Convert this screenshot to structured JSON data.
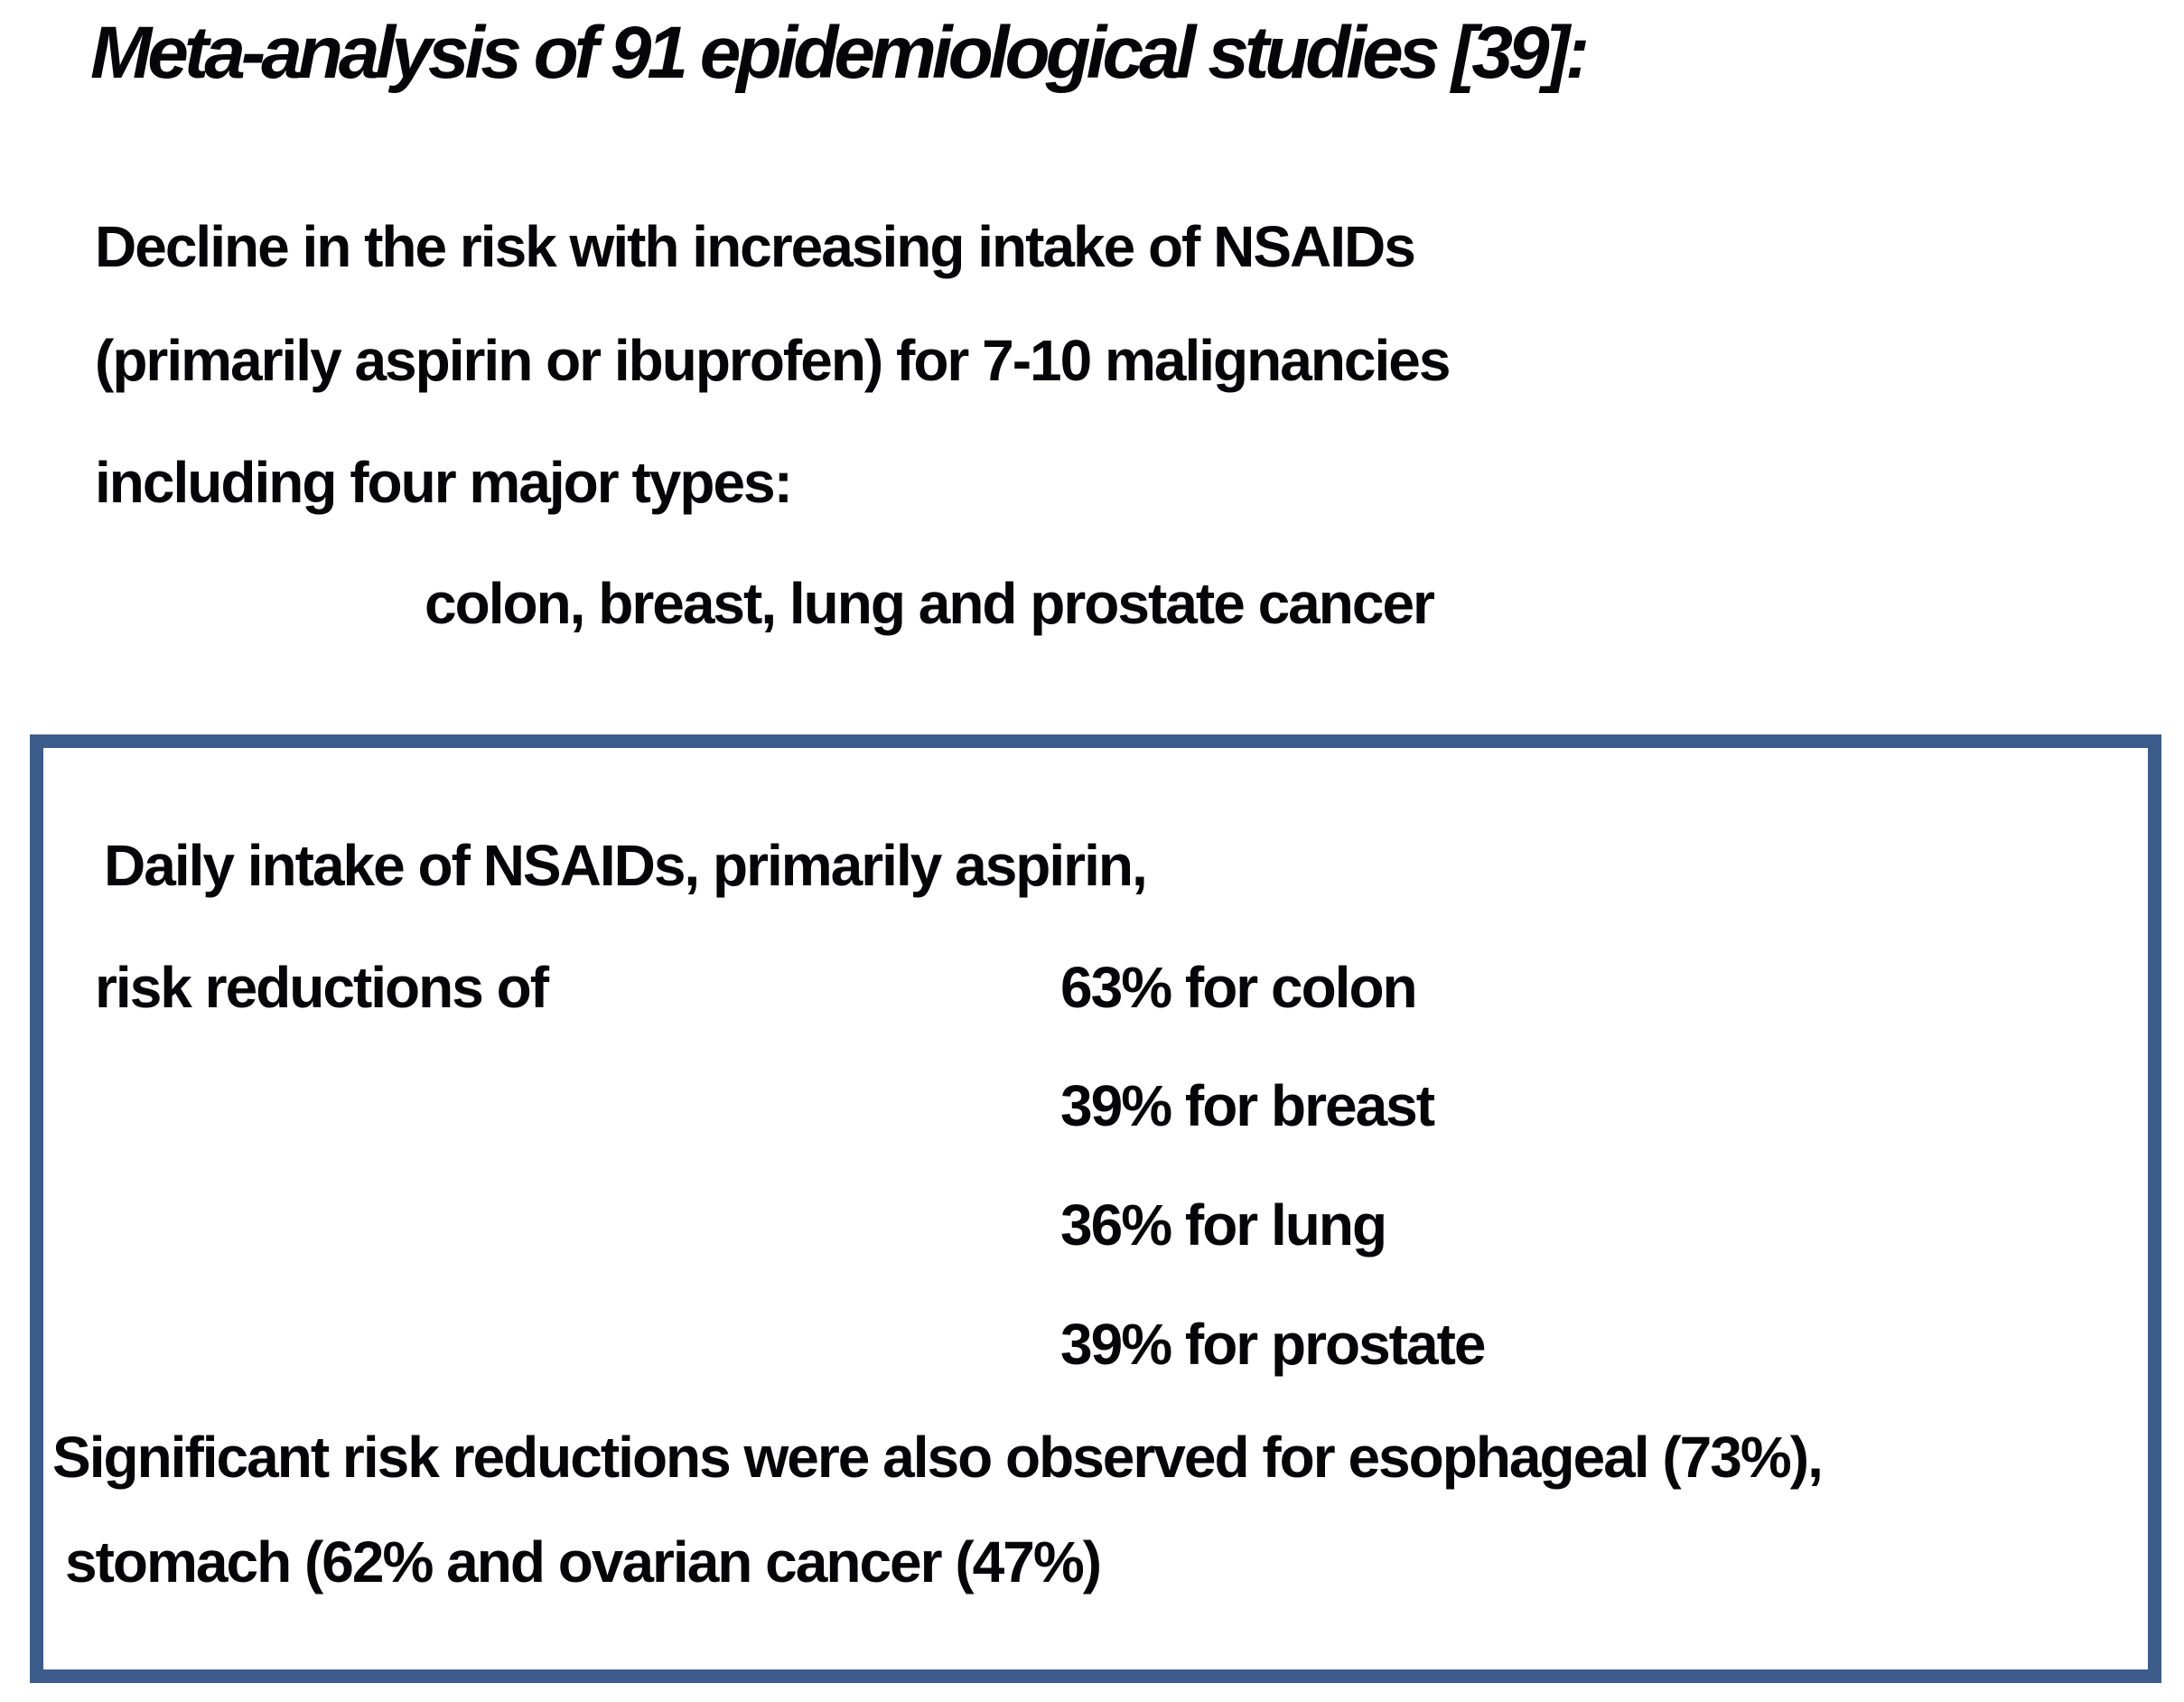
{
  "page": {
    "background": "#ffffff",
    "text_color": "#060608"
  },
  "title": "Meta-analysis of 91 epidemiological studies [39]:",
  "intro": {
    "lines": [
      "Decline in the risk with increasing intake of NSAIDs",
      "(primarily aspirin or ibuprofen) for 7-10 malignancies",
      "including four major types:",
      "colon, breast, lung and prostate cancer"
    ]
  },
  "box": {
    "border_color": "#3b5b8b",
    "lead": "Daily intake of NSAIDs, primarily aspirin,",
    "risk_label": "risk reductions of",
    "reductions": [
      "63% for colon",
      "39% for breast",
      "36% for lung",
      "39% for prostate"
    ],
    "footer": [
      "Significant risk reductions were also observed for esophageal (73%),",
      "stomach (62% and ovarian cancer (47%)"
    ]
  }
}
